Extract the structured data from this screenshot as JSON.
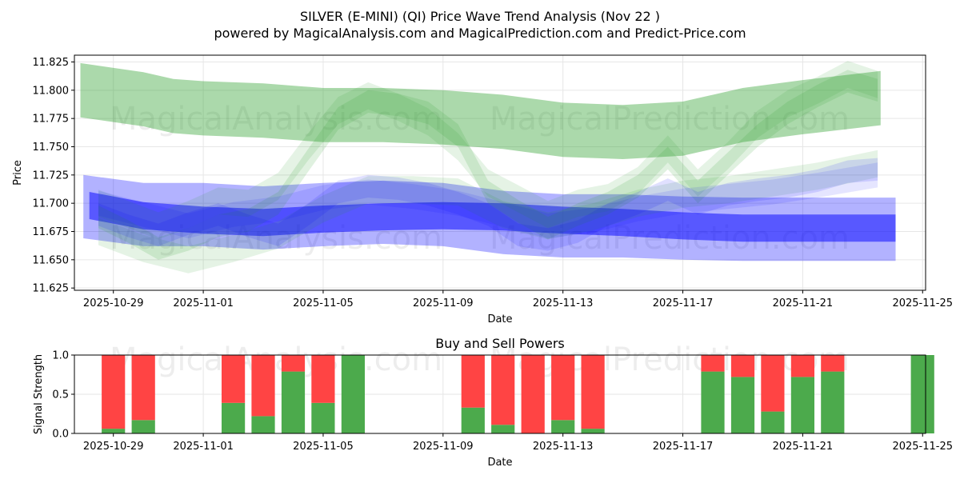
{
  "chart_data": [
    {
      "type": "area",
      "title_line1": "SILVER (E-MINI) (QI) Price Wave Trend Analysis (Nov 22 )",
      "title_line2": "powered by MagicalAnalysis.com and MagicalPrediction.com and Predict-Price.com",
      "xlabel": "Date",
      "ylabel": "Price",
      "ylim": [
        11.623,
        11.831
      ],
      "yticks": [
        11.625,
        11.65,
        11.675,
        11.7,
        11.725,
        11.75,
        11.775,
        11.8,
        11.825
      ],
      "ytick_labels": [
        "11.625",
        "11.650",
        "11.675",
        "11.700",
        "11.725",
        "11.750",
        "11.775",
        "11.800",
        "11.825"
      ],
      "xlim_days": [
        -1.3,
        27.1
      ],
      "xtick_days": [
        0,
        3,
        7,
        11,
        15,
        19,
        23,
        27
      ],
      "xtick_labels": [
        "2025-10-29",
        "2025-11-01",
        "2025-11-05",
        "2025-11-09",
        "2025-11-13",
        "2025-11-17",
        "2025-11-21",
        "2025-11-25"
      ],
      "watermarks": [
        "MagicalAnalysis.com",
        "MagicalPrediction.com"
      ],
      "grid": true,
      "bands": [
        {
          "name": "green-upper-band",
          "color": "#2ca02c",
          "opacity": 0.4,
          "x": [
            -1.1,
            1,
            2,
            3,
            5,
            7,
            9,
            11,
            13,
            15,
            17,
            19,
            21,
            23,
            25.6
          ],
          "center": [
            11.8,
            11.792,
            11.786,
            11.784,
            11.782,
            11.778,
            11.778,
            11.776,
            11.772,
            11.765,
            11.763,
            11.766,
            11.778,
            11.785,
            11.793
          ],
          "half_width": 0.024
        },
        {
          "name": "blue-main-band",
          "color": "#0000ff",
          "opacity": 0.5,
          "x": [
            -0.8,
            1,
            3,
            5,
            7,
            9,
            11,
            13,
            15,
            17,
            19,
            21,
            23,
            26.1
          ],
          "center": [
            11.698,
            11.689,
            11.685,
            11.683,
            11.686,
            11.688,
            11.689,
            11.688,
            11.685,
            11.683,
            11.68,
            11.678,
            11.678,
            11.678
          ],
          "half_width": 0.012
        },
        {
          "name": "blue-outer-band",
          "color": "#0000ff",
          "opacity": 0.3,
          "x": [
            -1,
            1,
            3,
            5,
            7,
            9,
            11,
            13,
            15,
            17,
            19,
            21,
            23,
            26.1
          ],
          "center": [
            11.697,
            11.69,
            11.69,
            11.687,
            11.69,
            11.692,
            11.69,
            11.683,
            11.68,
            11.68,
            11.678,
            11.677,
            11.677,
            11.677
          ],
          "half_width": 0.028
        },
        {
          "name": "wave-green-1",
          "color": "#2ca02c",
          "opacity": 0.15,
          "x": [
            -0.5,
            0.5,
            1.5,
            2.5,
            3.5,
            4.5,
            5.5,
            6.5,
            7.5,
            8.5,
            9.5,
            10.5,
            11.5,
            12.5,
            13.5,
            14.5,
            15.5,
            16.5,
            17.5,
            18.5,
            19.5,
            20.5,
            21.5,
            22.5,
            23.5,
            24.5,
            25.5
          ],
          "center": [
            11.688,
            11.675,
            11.66,
            11.668,
            11.68,
            11.685,
            11.7,
            11.738,
            11.775,
            11.79,
            11.787,
            11.78,
            11.76,
            11.71,
            11.693,
            11.678,
            11.69,
            11.7,
            11.715,
            11.74,
            11.71,
            11.735,
            11.76,
            11.78,
            11.795,
            11.808,
            11.8
          ],
          "half_width": 0.01
        },
        {
          "name": "wave-green-2",
          "color": "#2ca02c",
          "opacity": 0.12,
          "x": [
            -0.5,
            0.5,
            1.5,
            2.5,
            3.5,
            4.5,
            5.5,
            6.5,
            7.5,
            8.5,
            9.5,
            10.5,
            11.5,
            12.5,
            13.5,
            14.5,
            15.5,
            16.5,
            17.5,
            18.5,
            19.5,
            20.5,
            21.5,
            22.5,
            23.5,
            24.5,
            25.5
          ],
          "center": [
            11.7,
            11.69,
            11.68,
            11.69,
            11.702,
            11.7,
            11.715,
            11.75,
            11.782,
            11.795,
            11.785,
            11.772,
            11.75,
            11.718,
            11.704,
            11.69,
            11.7,
            11.705,
            11.72,
            11.748,
            11.718,
            11.742,
            11.77,
            11.788,
            11.8,
            11.814,
            11.805
          ],
          "half_width": 0.012
        },
        {
          "name": "wave-green-3",
          "color": "#2ca02c",
          "opacity": 0.12,
          "x": [
            -0.5,
            1,
            2.5,
            4,
            5.5,
            7,
            8.5,
            10,
            11.5,
            13,
            14.5,
            16,
            17.5,
            19,
            20.5,
            22,
            23.5,
            25.5
          ],
          "center": [
            11.675,
            11.66,
            11.65,
            11.66,
            11.672,
            11.695,
            11.712,
            11.712,
            11.71,
            11.69,
            11.68,
            11.688,
            11.7,
            11.708,
            11.712,
            11.718,
            11.724,
            11.735
          ],
          "half_width": 0.012
        },
        {
          "name": "wave-blue-1",
          "color": "#0000ff",
          "opacity": 0.12,
          "x": [
            -0.5,
            0.5,
            1.5,
            2.5,
            3.5,
            4.5,
            5.5,
            6.5,
            7.5,
            8.5,
            9.5,
            10.5,
            11.5,
            12.5,
            13.5,
            14.5,
            15.5,
            16.5,
            17.5,
            18.5,
            19.5,
            20.5,
            21.5,
            22.5,
            23.5,
            24.5,
            25.5
          ],
          "center": [
            11.69,
            11.68,
            11.672,
            11.682,
            11.69,
            11.68,
            11.672,
            11.69,
            11.71,
            11.715,
            11.713,
            11.708,
            11.7,
            11.69,
            11.672,
            11.668,
            11.675,
            11.69,
            11.7,
            11.712,
            11.7,
            11.708,
            11.712,
            11.715,
            11.72,
            11.728,
            11.73
          ],
          "half_width": 0.01
        },
        {
          "name": "wave-blue-2",
          "color": "#0000ff",
          "opacity": 0.1,
          "x": [
            -0.5,
            1,
            2.5,
            4,
            5.5,
            7,
            8.5,
            10,
            11.5,
            13,
            14.5,
            16,
            17.5,
            19,
            20.5,
            22,
            23.5,
            25.5
          ],
          "center": [
            11.7,
            11.69,
            11.68,
            11.69,
            11.695,
            11.705,
            11.71,
            11.706,
            11.7,
            11.69,
            11.68,
            11.685,
            11.695,
            11.702,
            11.706,
            11.71,
            11.716,
            11.725
          ],
          "half_width": 0.011
        }
      ]
    },
    {
      "type": "bar",
      "title": "Buy and Sell Powers",
      "xlabel": "Date",
      "ylabel": "Signal Strength",
      "ylim": [
        0,
        1.0
      ],
      "yticks": [
        0,
        0.5,
        1.0
      ],
      "ytick_labels": [
        "0.0",
        "0.5",
        "1.0"
      ],
      "xlim_days": [
        -1.3,
        27.1
      ],
      "xtick_days": [
        0,
        3,
        7,
        11,
        15,
        19,
        23,
        27
      ],
      "xtick_labels": [
        "2025-10-29",
        "2025-11-01",
        "2025-11-05",
        "2025-11-09",
        "2025-11-13",
        "2025-11-17",
        "2025-11-21",
        "2025-11-25"
      ],
      "watermarks": [
        "MagicalAnalysis.com",
        "MagicalPrediction.com"
      ],
      "grid": true,
      "series": [
        {
          "name": "Buy",
          "color": "#4caa4c"
        },
        {
          "name": "Sell",
          "color": "#ff4444"
        }
      ],
      "bars": [
        {
          "day": 1,
          "buy": 0.06
        },
        {
          "day": 2,
          "buy": 0.17
        },
        {
          "day": 5,
          "buy": 0.39
        },
        {
          "day": 6,
          "buy": 0.22
        },
        {
          "day": 7,
          "buy": 0.79
        },
        {
          "day": 8,
          "buy": 0.39
        },
        {
          "day": 9,
          "buy": 1.0
        },
        {
          "day": 13,
          "buy": 0.33
        },
        {
          "day": 14,
          "buy": 0.11
        },
        {
          "day": 15,
          "buy": 0.0
        },
        {
          "day": 16,
          "buy": 0.17
        },
        {
          "day": 17,
          "buy": 0.06
        },
        {
          "day": 21,
          "buy": 0.79
        },
        {
          "day": 22,
          "buy": 0.72
        },
        {
          "day": 23,
          "buy": 0.28
        },
        {
          "day": 24,
          "buy": 0.72
        },
        {
          "day": 25,
          "buy": 0.79
        },
        {
          "day": 28,
          "buy": 1.0
        }
      ]
    }
  ]
}
